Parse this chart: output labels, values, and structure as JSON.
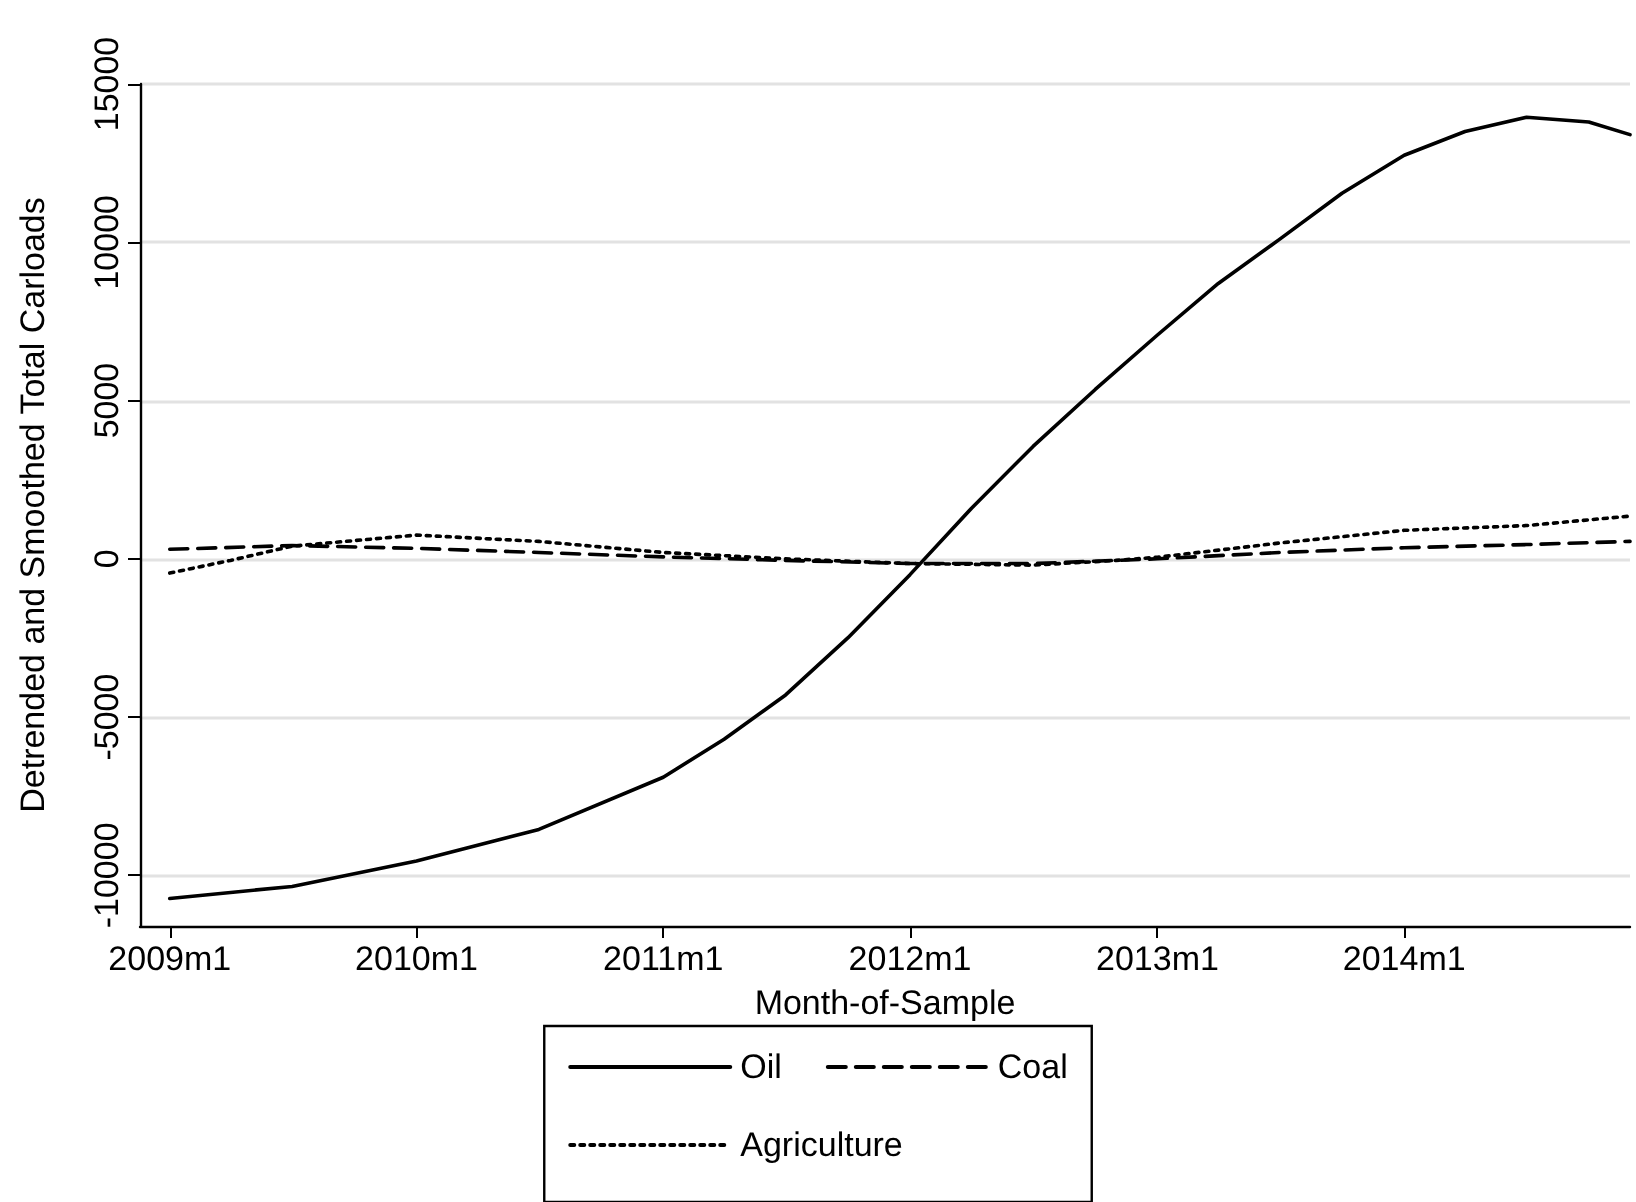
{
  "chart_data": {
    "type": "line",
    "xlabel": "Month-of-Sample",
    "ylabel": "Detrended and Smoothed Total Carloads",
    "xlim": [
      "2008-11-18",
      "2014-12-01"
    ],
    "xticks": [
      {
        "value": "2009-01",
        "label": "2009m1"
      },
      {
        "value": "2010-01",
        "label": "2010m1"
      },
      {
        "value": "2011-01",
        "label": "2011m1"
      },
      {
        "value": "2012-01",
        "label": "2012m1"
      },
      {
        "value": "2013-01",
        "label": "2013m1"
      },
      {
        "value": "2014-01",
        "label": "2014m1"
      }
    ],
    "ylim": [
      -11600,
      15000
    ],
    "yticks": [
      -10000,
      -5000,
      0,
      5000,
      10000,
      15000
    ],
    "grid": "y",
    "legend": "bottom",
    "marker": "none",
    "series": [
      {
        "name": "Oil",
        "color": "#000000",
        "line_style": "solid",
        "x": [
          "2009-01",
          "2009-07",
          "2010-01",
          "2010-07",
          "2011-01",
          "2011-04",
          "2011-07",
          "2011-10",
          "2012-01",
          "2012-04",
          "2012-07",
          "2012-10",
          "2013-01",
          "2013-04",
          "2013-07",
          "2013-10",
          "2014-01",
          "2014-04",
          "2014-07",
          "2014-10",
          "2014-12"
        ],
        "values": [
          -10730,
          -10350,
          -9550,
          -8550,
          -6900,
          -5700,
          -4300,
          -2500,
          -500,
          1600,
          3550,
          5350,
          7070,
          8700,
          10100,
          11550,
          12750,
          13500,
          13950,
          13800,
          13400
        ]
      },
      {
        "name": "Coal",
        "color": "#000000",
        "line_style": "dashed",
        "x": [
          "2009-01",
          "2009-07",
          "2010-01",
          "2010-07",
          "2011-01",
          "2011-07",
          "2012-01",
          "2012-07",
          "2013-01",
          "2013-07",
          "2014-01",
          "2014-07",
          "2014-12"
        ],
        "values": [
          300,
          420,
          330,
          200,
          60,
          -50,
          -150,
          -150,
          0,
          200,
          350,
          450,
          550
        ]
      },
      {
        "name": "Agriculture",
        "color": "#000000",
        "line_style": "dotted",
        "x": [
          "2009-01",
          "2009-04",
          "2009-07",
          "2010-01",
          "2010-07",
          "2011-01",
          "2011-07",
          "2012-01",
          "2012-07",
          "2012-11",
          "2013-01",
          "2013-07",
          "2014-01",
          "2014-07",
          "2014-12"
        ],
        "values": [
          -450,
          -50,
          400,
          750,
          550,
          200,
          0,
          -150,
          -200,
          -50,
          50,
          500,
          900,
          1050,
          1350
        ]
      }
    ]
  }
}
